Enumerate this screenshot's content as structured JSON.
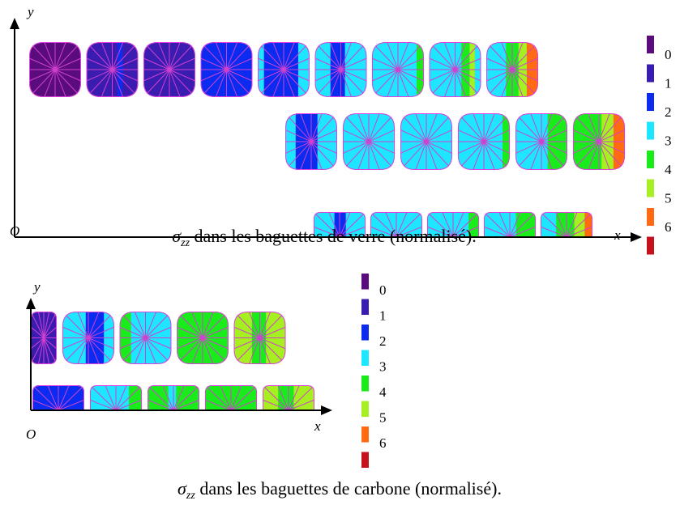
{
  "figure_top": {
    "y_label": "y",
    "x_label": "x",
    "origin_label": "O",
    "caption": {
      "symbol": "σ",
      "subscript": "zz",
      "text": " dans les baguettes de verre (normalisé)."
    }
  },
  "figure_bottom": {
    "y_label": "y",
    "x_label": "x",
    "origin_label": "O",
    "caption": {
      "symbol": "σ",
      "subscript": "zz",
      "text": " dans les baguettes de carbone (normalisé)."
    }
  },
  "legend": {
    "labels": [
      "0",
      "1",
      "2",
      "3",
      "4",
      "5",
      "6"
    ],
    "colors": [
      "#5b0c7c",
      "#3b1cb0",
      "#0b2cf0",
      "#1ee6ff",
      "#1aeb1a",
      "#a6f021",
      "#ff6a12",
      "#c8101c"
    ]
  }
}
